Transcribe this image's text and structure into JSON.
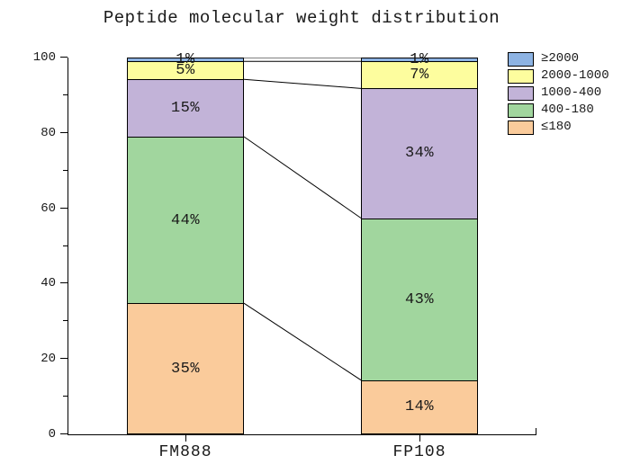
{
  "chart_data": {
    "type": "bar",
    "subtype": "stacked-percentage-columns-with-connector-lines",
    "title": "Peptide molecular weight distribution",
    "categories": [
      "FM888",
      "FP108"
    ],
    "series": [
      {
        "name": "≤180",
        "color": "#FACB9B",
        "values": [
          35,
          14
        ],
        "labels": [
          "35%",
          "14%"
        ],
        "draw_values": [
          34.8,
          14.4
        ]
      },
      {
        "name": "400-180",
        "color": "#A1D69E",
        "values": [
          44,
          43
        ],
        "labels": [
          "44%",
          "43%"
        ],
        "draw_values": [
          44.2,
          43.0
        ]
      },
      {
        "name": "1000-400",
        "color": "#C2B3D8",
        "values": [
          15,
          34
        ],
        "labels": [
          "15%",
          "34%"
        ],
        "draw_values": [
          15.2,
          34.4
        ]
      },
      {
        "name": "2000-1000",
        "color": "#FDFD9E",
        "values": [
          5,
          7
        ],
        "labels": [
          "5%",
          "7%"
        ],
        "draw_values": [
          4.8,
          7.2
        ]
      },
      {
        "name": "≥2000",
        "color": "#8DB3E3",
        "values": [
          1,
          1
        ],
        "labels": [
          "1%",
          "1%"
        ],
        "draw_values": [
          1.0,
          1.0
        ]
      }
    ],
    "ylim": [
      0,
      100
    ],
    "yticks": [
      0,
      20,
      40,
      60,
      80,
      100
    ],
    "ytick_labels": [
      "0",
      "20",
      "40",
      "60",
      "80",
      "100"
    ],
    "minor_yticks": [
      10,
      30,
      50,
      70,
      90
    ],
    "grid": false,
    "connectors_between_stacks": true,
    "legend": {
      "position": "top-right-outside",
      "items_top_to_bottom": [
        "≥2000",
        "2000-1000",
        "1000-400",
        "400-180",
        "≤180"
      ]
    },
    "axis_color": "#000000",
    "text_color": "#1A1A1A",
    "background": "#FFFFFF"
  }
}
